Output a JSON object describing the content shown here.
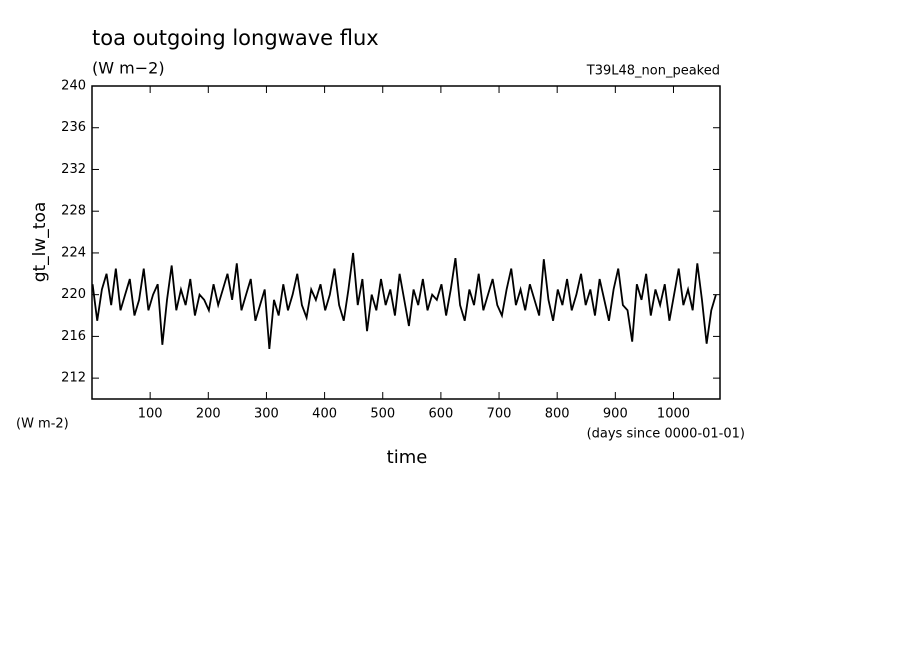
{
  "chart_data": {
    "type": "line",
    "title": "toa outgoing longwave flux",
    "subtitle": "(W m−2)",
    "annotation": "T39L48_non_peaked",
    "y_label": "gt_lw_toa",
    "y_units": "(W m-2)",
    "x_label": "time",
    "x_units": "(days since 0000-01-01)",
    "xlim": [
      0,
      1080
    ],
    "ylim": [
      210,
      240
    ],
    "xticks": [
      100,
      200,
      300,
      400,
      500,
      600,
      700,
      800,
      900,
      1000
    ],
    "yticks": [
      212,
      216,
      220,
      224,
      228,
      232,
      236,
      240
    ],
    "x": [
      1,
      9,
      17,
      25,
      33,
      41,
      49,
      57,
      65,
      73,
      81,
      89,
      97,
      105,
      113,
      121,
      129,
      137,
      145,
      153,
      161,
      169,
      177,
      185,
      193,
      201,
      209,
      217,
      225,
      233,
      241,
      249,
      257,
      265,
      273,
      281,
      289,
      297,
      305,
      313,
      321,
      329,
      337,
      345,
      353,
      361,
      369,
      377,
      385,
      393,
      401,
      409,
      417,
      425,
      433,
      441,
      449,
      457,
      465,
      473,
      481,
      489,
      497,
      505,
      513,
      521,
      529,
      537,
      545,
      553,
      561,
      569,
      577,
      585,
      593,
      601,
      609,
      617,
      625,
      633,
      641,
      649,
      657,
      665,
      673,
      681,
      689,
      697,
      705,
      713,
      721,
      729,
      737,
      745,
      753,
      761,
      769,
      777,
      785,
      793,
      801,
      809,
      817,
      825,
      833,
      841,
      849,
      857,
      865,
      873,
      881,
      889,
      897,
      905,
      913,
      921,
      929,
      937,
      945,
      953,
      961,
      969,
      977,
      985,
      993,
      1001,
      1009,
      1017,
      1025,
      1033,
      1041,
      1049,
      1057,
      1065,
      1073
    ],
    "series": [
      {
        "name": "gt_lw_toa",
        "color": "#000000",
        "values": [
          221.0,
          217.5,
          220.5,
          222.0,
          219.0,
          222.5,
          218.5,
          220.0,
          221.5,
          218.0,
          219.5,
          222.5,
          218.5,
          220.0,
          221.0,
          215.2,
          219.5,
          222.8,
          218.5,
          220.5,
          219.0,
          221.5,
          218.0,
          220.0,
          219.5,
          218.5,
          221.0,
          219.0,
          220.5,
          222.0,
          219.5,
          223.0,
          218.5,
          220.0,
          221.5,
          217.5,
          219.0,
          220.5,
          214.8,
          219.5,
          218.0,
          221.0,
          218.5,
          220.0,
          222.0,
          219.0,
          217.8,
          220.5,
          219.5,
          221.0,
          218.5,
          220.0,
          222.5,
          219.0,
          217.5,
          220.5,
          224.0,
          219.0,
          221.5,
          216.5,
          220.0,
          218.5,
          221.5,
          219.0,
          220.5,
          218.0,
          222.0,
          219.5,
          217.0,
          220.5,
          219.0,
          221.5,
          218.5,
          220.0,
          219.5,
          221.0,
          218.0,
          220.5,
          223.5,
          219.0,
          217.5,
          220.5,
          219.0,
          222.0,
          218.5,
          220.0,
          221.5,
          219.0,
          218.0,
          220.5,
          222.5,
          219.0,
          220.5,
          218.5,
          221.0,
          219.5,
          218.0,
          223.4,
          219.5,
          217.5,
          220.5,
          219.0,
          221.5,
          218.5,
          220.0,
          222.0,
          219.0,
          220.5,
          218.0,
          221.5,
          219.5,
          217.5,
          220.5,
          222.5,
          219.0,
          218.5,
          215.5,
          221.0,
          219.5,
          222.0,
          218.0,
          220.5,
          219.0,
          221.0,
          217.5,
          220.0,
          222.5,
          219.0,
          220.5,
          218.5,
          223.0,
          219.5,
          215.3,
          218.5,
          220.0
        ]
      }
    ]
  }
}
